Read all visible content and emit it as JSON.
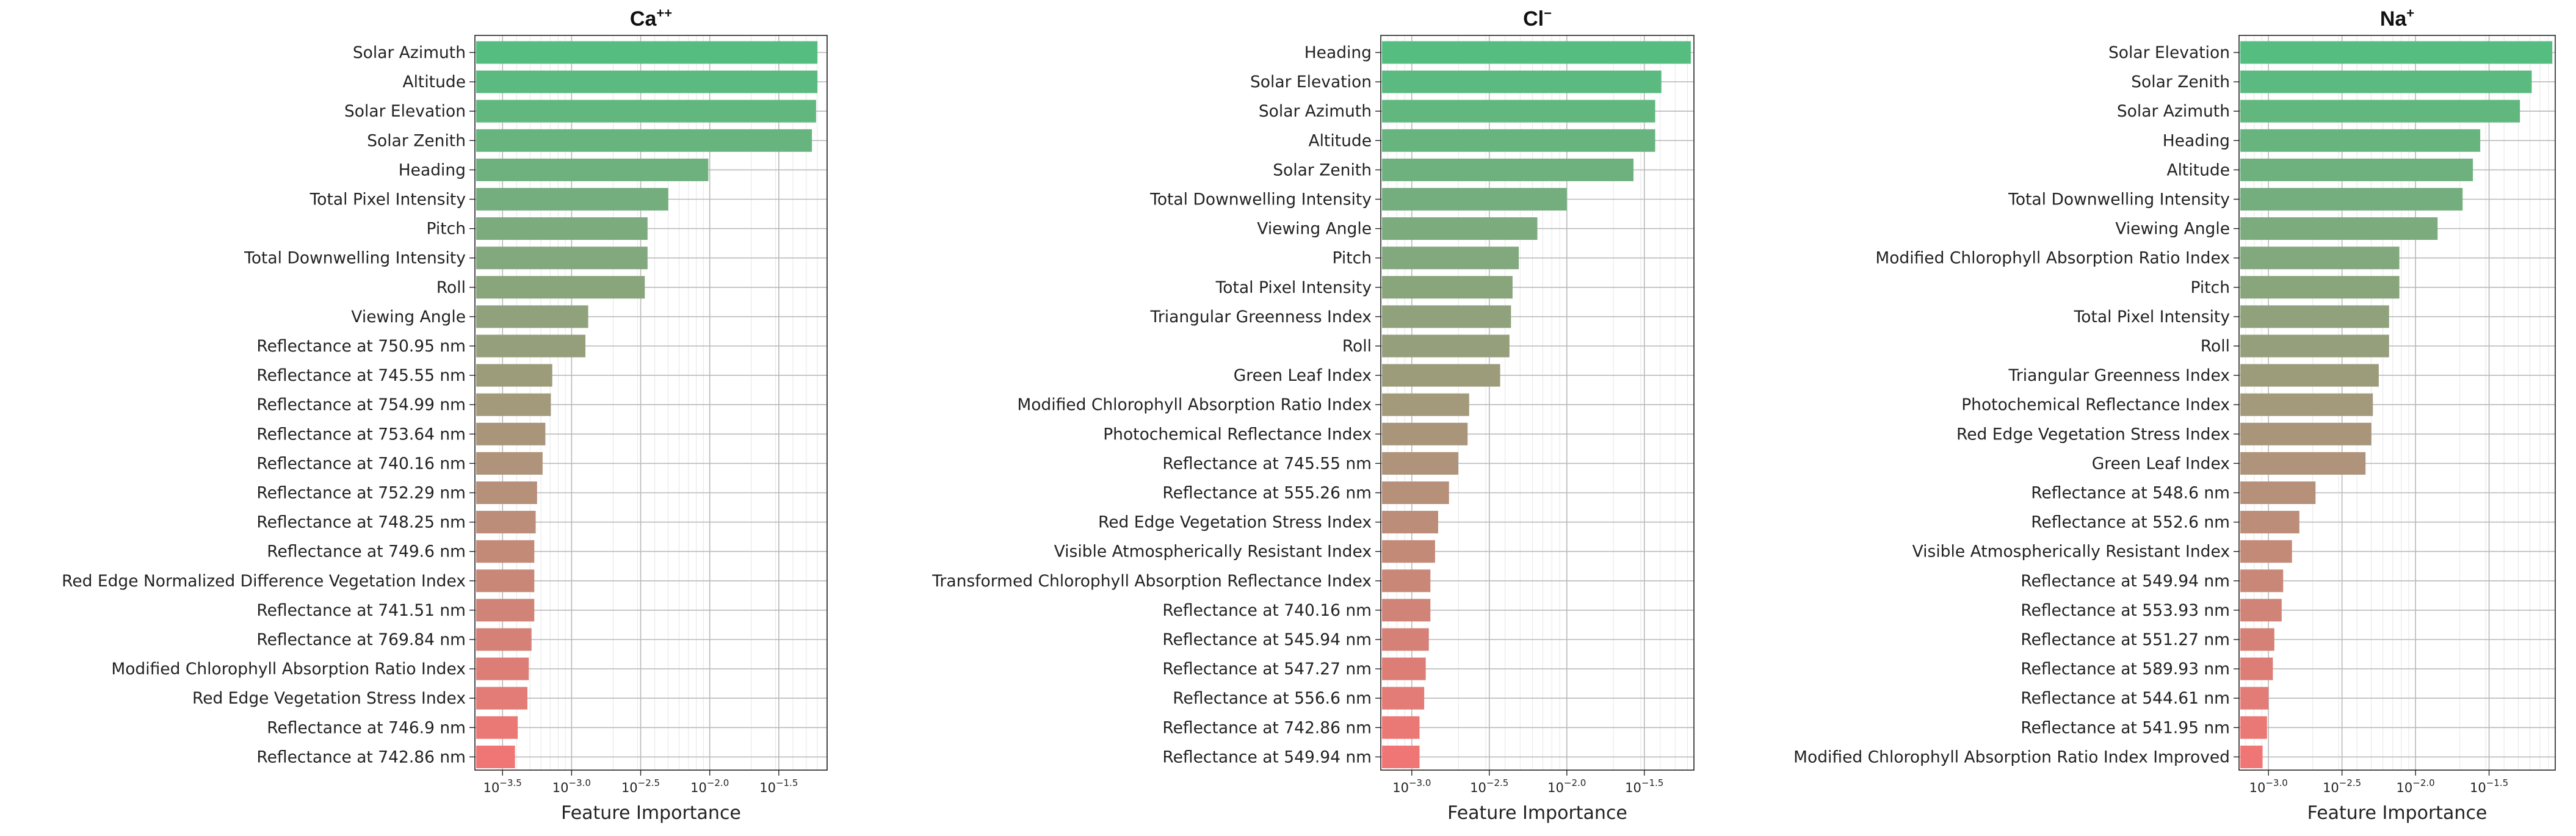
{
  "chart_data": [
    {
      "type": "bar",
      "orientation": "horizontal",
      "xscale": "log10",
      "title_base": "Ca",
      "title_sup": "++",
      "xlabel": "Feature Importance",
      "xlim_log10": [
        -3.7,
        -1.15
      ],
      "ticks": [
        {
          "exp": -3.5,
          "base": "10",
          "sup": "−3.5"
        },
        {
          "exp": -3.0,
          "base": "10",
          "sup": "−3.0"
        },
        {
          "exp": -2.5,
          "base": "10",
          "sup": "−2.5"
        },
        {
          "exp": -2.0,
          "base": "10",
          "sup": "−2.0"
        },
        {
          "exp": -1.5,
          "base": "10",
          "sup": "−1.5"
        }
      ],
      "bar_color_top": "#55bd80",
      "bar_color_bottom": "#f07575",
      "categories": [
        "Solar Azimuth",
        "Altitude",
        "Solar Elevation",
        "Solar Zenith",
        "Heading",
        "Total Pixel Intensity",
        "Pitch",
        "Total Downwelling Intensity",
        "Roll",
        "Viewing Angle",
        "Reflectance at 750.95 nm",
        "Reflectance at 745.55 nm",
        "Reflectance at 754.99 nm",
        "Reflectance at 753.64 nm",
        "Reflectance at 740.16 nm",
        "Reflectance at 752.29 nm",
        "Reflectance at 748.25 nm",
        "Reflectance at 749.6 nm",
        "Red Edge Normalized Difference Vegetation Index",
        "Reflectance at 741.51 nm",
        "Reflectance at 769.84 nm",
        "Modified Chlorophyll Absorption Ratio Index",
        "Red Edge Vegetation Stress Index",
        "Reflectance at 746.9 nm",
        "Reflectance at 742.86 nm"
      ],
      "log10_values": [
        -1.22,
        -1.22,
        -1.23,
        -1.26,
        -2.01,
        -2.3,
        -2.45,
        -2.45,
        -2.47,
        -2.88,
        -2.9,
        -3.14,
        -3.15,
        -3.19,
        -3.21,
        -3.25,
        -3.26,
        -3.27,
        -3.27,
        -3.27,
        -3.29,
        -3.31,
        -3.32,
        -3.39,
        -3.41
      ]
    },
    {
      "type": "bar",
      "orientation": "horizontal",
      "xscale": "log10",
      "title_base": "Cl",
      "title_sup": "−",
      "xlabel": "Feature Importance",
      "xlim_log10": [
        -3.2,
        -1.18
      ],
      "ticks": [
        {
          "exp": -3.0,
          "base": "10",
          "sup": "−3.0"
        },
        {
          "exp": -2.5,
          "base": "10",
          "sup": "−2.5"
        },
        {
          "exp": -2.0,
          "base": "10",
          "sup": "−2.0"
        },
        {
          "exp": -1.5,
          "base": "10",
          "sup": "−1.5"
        }
      ],
      "bar_color_top": "#55bd80",
      "bar_color_bottom": "#f07575",
      "categories": [
        "Heading",
        "Solar Elevation",
        "Solar Azimuth",
        "Altitude",
        "Solar Zenith",
        "Total Downwelling Intensity",
        "Viewing Angle",
        "Pitch",
        "Total Pixel Intensity",
        "Triangular Greenness Index",
        "Roll",
        "Green Leaf Index",
        "Modified Chlorophyll Absorption Ratio Index",
        "Photochemical Reflectance Index",
        "Reflectance at 745.55 nm",
        "Reflectance at 555.26 nm",
        "Red Edge Vegetation Stress Index",
        "Visible Atmospherically Resistant Index",
        "Transformed Chlorophyll Absorption Reflectance Index",
        "Reflectance at 740.16 nm",
        "Reflectance at 545.94 nm",
        "Reflectance at 547.27 nm",
        "Reflectance at 556.6 nm",
        "Reflectance at 742.86 nm",
        "Reflectance at 549.94 nm"
      ],
      "log10_values": [
        -1.2,
        -1.39,
        -1.43,
        -1.43,
        -1.57,
        -2.0,
        -2.19,
        -2.31,
        -2.35,
        -2.36,
        -2.37,
        -2.43,
        -2.63,
        -2.64,
        -2.7,
        -2.76,
        -2.83,
        -2.85,
        -2.88,
        -2.88,
        -2.89,
        -2.91,
        -2.92,
        -2.95,
        -2.95
      ]
    },
    {
      "type": "bar",
      "orientation": "horizontal",
      "xscale": "log10",
      "title_base": "Na",
      "title_sup": "+",
      "xlabel": "Feature Importance",
      "xlim_log10": [
        -3.2,
        -1.05
      ],
      "ticks": [
        {
          "exp": -3.0,
          "base": "10",
          "sup": "−3.0"
        },
        {
          "exp": -2.5,
          "base": "10",
          "sup": "−2.5"
        },
        {
          "exp": -2.0,
          "base": "10",
          "sup": "−2.0"
        },
        {
          "exp": -1.5,
          "base": "10",
          "sup": "−1.5"
        }
      ],
      "bar_color_top": "#55bd80",
      "bar_color_bottom": "#f07575",
      "categories": [
        "Solar Elevation",
        "Solar Zenith",
        "Solar Azimuth",
        "Heading",
        "Altitude",
        "Total Downwelling Intensity",
        "Viewing Angle",
        "Modified Chlorophyll Absorption Ratio Index",
        "Pitch",
        "Total Pixel Intensity",
        "Roll",
        "Triangular Greenness Index",
        "Photochemical Reflectance Index",
        "Red Edge Vegetation Stress Index",
        "Green Leaf Index",
        "Reflectance at 548.6 nm",
        "Reflectance at 552.6 nm",
        "Visible Atmospherically Resistant Index",
        "Reflectance at 549.94 nm",
        "Reflectance at 553.93 nm",
        "Reflectance at 551.27 nm",
        "Reflectance at 589.93 nm",
        "Reflectance at 544.61 nm",
        "Reflectance at 541.95 nm",
        "Modified Chlorophyll Absorption Ratio Index Improved"
      ],
      "log10_values": [
        -1.07,
        -1.21,
        -1.29,
        -1.56,
        -1.61,
        -1.68,
        -1.85,
        -2.11,
        -2.11,
        -2.18,
        -2.18,
        -2.25,
        -2.29,
        -2.3,
        -2.34,
        -2.68,
        -2.79,
        -2.84,
        -2.9,
        -2.91,
        -2.96,
        -2.97,
        -3.0,
        -3.01,
        -3.04
      ]
    }
  ]
}
